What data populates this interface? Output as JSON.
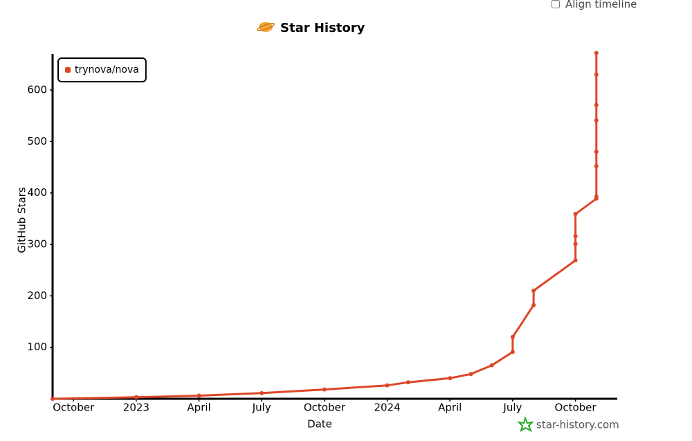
{
  "chart_data": {
    "type": "line",
    "title": "Star History",
    "x_label": "Date",
    "y_label": "GitHub Stars",
    "x": [
      "2022-09",
      "2023-01",
      "2023-04",
      "2023-07",
      "2023-10",
      "2024-01",
      "2024-02",
      "2024-04",
      "2024-05",
      "2024-06",
      "2024-07",
      "2024-07",
      "2024-08",
      "2024-08",
      "2024-10",
      "2024-10",
      "2024-10",
      "2024-10",
      "2024-11",
      "2024-11",
      "2024-11",
      "2024-11",
      "2024-11",
      "2024-11",
      "2024-11",
      "2024-11"
    ],
    "series": [
      {
        "name": "trynova/nova",
        "color": "#dd4528",
        "values": [
          0,
          3,
          6,
          11,
          18,
          26,
          32,
          40,
          48,
          65,
          91,
          120,
          182,
          210,
          269,
          301,
          316,
          359,
          389,
          393,
          452,
          480,
          541,
          571,
          630,
          672
        ]
      }
    ],
    "xlim": [
      "2022-09",
      "2024-12"
    ],
    "xticks": [
      {
        "value": "2022-10",
        "label": "October"
      },
      {
        "value": "2023-01",
        "label": "2023"
      },
      {
        "value": "2023-04",
        "label": "April"
      },
      {
        "value": "2023-07",
        "label": "July"
      },
      {
        "value": "2023-10",
        "label": "October"
      },
      {
        "value": "2024-01",
        "label": "2024"
      },
      {
        "value": "2024-04",
        "label": "April"
      },
      {
        "value": "2024-07",
        "label": "July"
      },
      {
        "value": "2024-10",
        "label": "October"
      }
    ],
    "ylim": [
      0,
      670
    ],
    "yticks": [
      100,
      200,
      300,
      400,
      500,
      600
    ],
    "grid": false,
    "legend": "top-left"
  },
  "controls": {
    "align_timeline": "Align timeline"
  },
  "watermark": "star-history.com"
}
